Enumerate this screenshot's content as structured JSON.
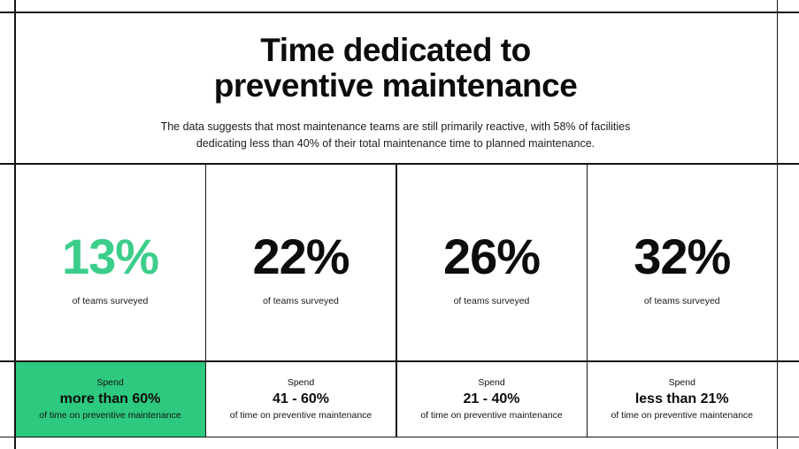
{
  "page": {
    "title_line1": "Time dedicated to",
    "title_line2": "preventive maintenance",
    "subtitle": "The data suggests that most maintenance teams are still primarily reactive, with 58% of facilities dedicating less than 40% of their total maintenance time to planned maintenance."
  },
  "columns": [
    {
      "stat_value": "13%",
      "stat_caption": "of teams surveyed",
      "spend_label": "Spend",
      "spend_range": "more than 60%",
      "spend_caption": "of time on preventive maintenance",
      "highlighted": true
    },
    {
      "stat_value": "22%",
      "stat_caption": "of teams surveyed",
      "spend_label": "Spend",
      "spend_range": "41 - 60%",
      "spend_caption": "of time on preventive maintenance",
      "highlighted": false
    },
    {
      "stat_value": "26%",
      "stat_caption": "of teams surveyed",
      "spend_label": "Spend",
      "spend_range": "21 - 40%",
      "spend_caption": "of time on preventive maintenance",
      "highlighted": false
    },
    {
      "stat_value": "32%",
      "stat_caption": "of teams surveyed",
      "spend_label": "Spend",
      "spend_range": "less than 21%",
      "spend_caption": "of time on preventive maintenance",
      "highlighted": false
    }
  ],
  "colors": {
    "highlight_green": "#2dc97e",
    "stat_green_text": "#3bce8a",
    "ink": "#111111",
    "grid_line": "#141414",
    "background": "#ffffff"
  },
  "chart_data": {
    "type": "table",
    "title": "Time dedicated to preventive maintenance",
    "subtitle": "The data suggests that most maintenance teams are still primarily reactive, with 58% of facilities dedicating less than 40% of their total maintenance time to planned maintenance.",
    "categories": [
      "Spend more than 60% of time on preventive maintenance",
      "Spend 41 - 60% of time on preventive maintenance",
      "Spend 21 - 40% of time on preventive maintenance",
      "Spend less than 21% of time on preventive maintenance"
    ],
    "values": [
      13,
      22,
      26,
      32
    ],
    "unit": "% of teams surveyed",
    "highlighted_index": 0
  }
}
